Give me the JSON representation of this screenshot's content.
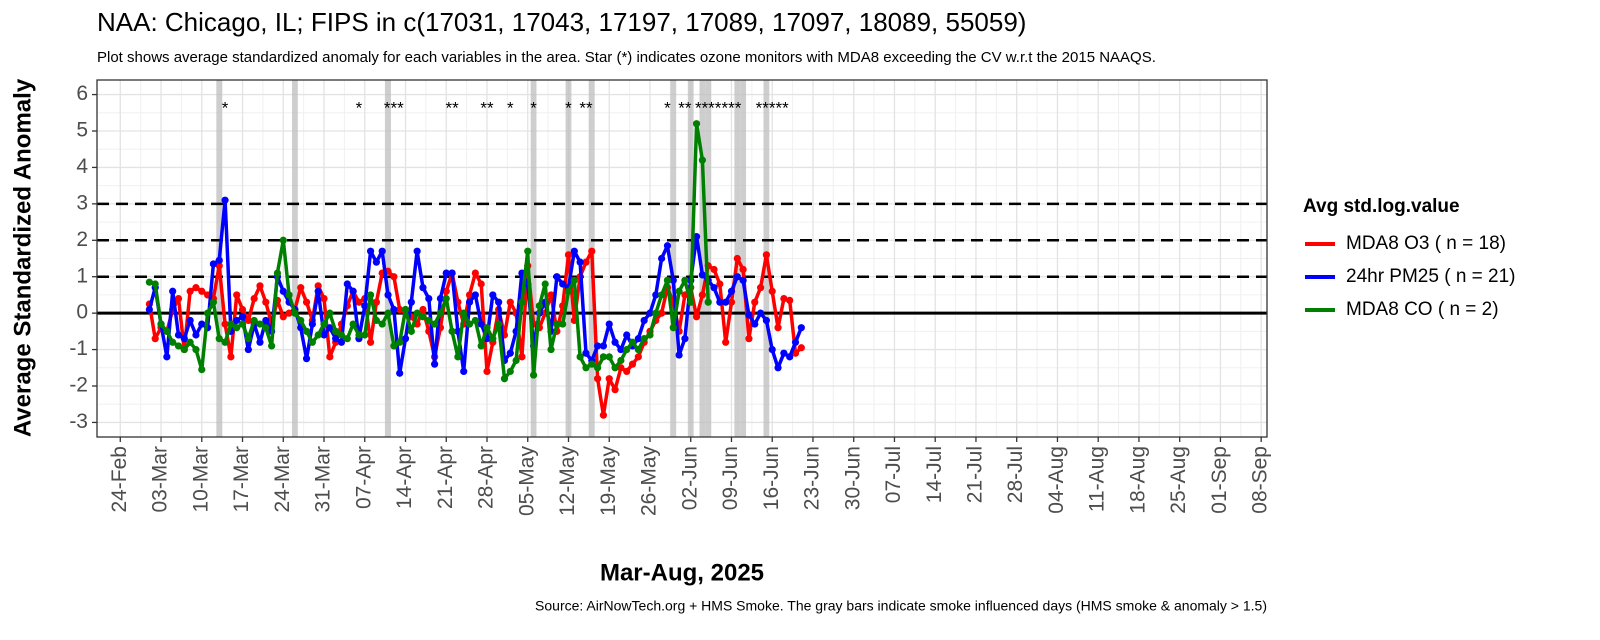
{
  "chart_data": {
    "type": "line",
    "title": "NAA: Chicago, IL; FIPS in c(17031, 17043, 17197, 17089, 17097, 18089, 55059)",
    "subtitle": "Plot shows average standardized anomaly for each variables in the area. Star (*) indicates ozone monitors with MDA8 exceeding the CV w.r.t the 2015 NAAQS.",
    "x_label": "Mar-Aug, 2025",
    "y_label": "Average Standardized Anomaly",
    "caption": "Source: AirNowTech.org + HMS Smoke. The gray bars indicate smoke influenced days (HMS smoke & anomaly > 1.5)",
    "legend_title": "Avg std.log.value",
    "legend": "right",
    "grid": true,
    "xlim": [
      "2025-02-20",
      "2025-09-09"
    ],
    "xticks": [
      {
        "value": "2025-02-24",
        "label": "24-Feb"
      },
      {
        "value": "2025-03-03",
        "label": "03-Mar"
      },
      {
        "value": "2025-03-10",
        "label": "10-Mar"
      },
      {
        "value": "2025-03-17",
        "label": "17-Mar"
      },
      {
        "value": "2025-03-24",
        "label": "24-Mar"
      },
      {
        "value": "2025-03-31",
        "label": "31-Mar"
      },
      {
        "value": "2025-04-07",
        "label": "07-Apr"
      },
      {
        "value": "2025-04-14",
        "label": "14-Apr"
      },
      {
        "value": "2025-04-21",
        "label": "21-Apr"
      },
      {
        "value": "2025-04-28",
        "label": "28-Apr"
      },
      {
        "value": "2025-05-05",
        "label": "05-May"
      },
      {
        "value": "2025-05-12",
        "label": "12-May"
      },
      {
        "value": "2025-05-19",
        "label": "19-May"
      },
      {
        "value": "2025-05-26",
        "label": "26-May"
      },
      {
        "value": "2025-06-02",
        "label": "02-Jun"
      },
      {
        "value": "2025-06-09",
        "label": "09-Jun"
      },
      {
        "value": "2025-06-16",
        "label": "16-Jun"
      },
      {
        "value": "2025-06-23",
        "label": "23-Jun"
      },
      {
        "value": "2025-06-30",
        "label": "30-Jun"
      },
      {
        "value": "2025-07-07",
        "label": "07-Jul"
      },
      {
        "value": "2025-07-14",
        "label": "14-Jul"
      },
      {
        "value": "2025-07-21",
        "label": "21-Jul"
      },
      {
        "value": "2025-07-28",
        "label": "28-Jul"
      },
      {
        "value": "2025-08-04",
        "label": "04-Aug"
      },
      {
        "value": "2025-08-11",
        "label": "11-Aug"
      },
      {
        "value": "2025-08-18",
        "label": "18-Aug"
      },
      {
        "value": "2025-08-25",
        "label": "25-Aug"
      },
      {
        "value": "2025-09-01",
        "label": "01-Sep"
      },
      {
        "value": "2025-09-08",
        "label": "08-Sep"
      }
    ],
    "ylim": [
      -3.4,
      6.4
    ],
    "yticks": [
      -3,
      -2,
      -1,
      0,
      1,
      2,
      3,
      4,
      5,
      6
    ],
    "hlines": [
      {
        "value": 0,
        "dashed": false
      },
      {
        "value": 1,
        "dashed": true
      },
      {
        "value": 2,
        "dashed": true
      },
      {
        "value": 3,
        "dashed": true
      }
    ],
    "smoke_days": [
      "2025-03-13",
      "2025-03-26",
      "2025-04-11",
      "2025-05-06",
      "2025-05-12",
      "2025-05-16",
      "2025-05-30",
      "2025-06-02",
      "2025-06-04",
      "2025-06-05",
      "2025-06-10",
      "2025-06-11",
      "2025-06-15"
    ],
    "smoke_color": "#bdbdbd",
    "annotations": [
      {
        "x": "2025-03-14",
        "y": 5.6,
        "text": "*"
      },
      {
        "x": "2025-04-06",
        "y": 5.6,
        "text": "*"
      },
      {
        "x": "2025-04-12",
        "y": 5.6,
        "text": "***"
      },
      {
        "x": "2025-04-22",
        "y": 5.6,
        "text": "**"
      },
      {
        "x": "2025-04-28",
        "y": 5.6,
        "text": "**"
      },
      {
        "x": "2025-05-02",
        "y": 5.6,
        "text": "*"
      },
      {
        "x": "2025-05-06",
        "y": 5.6,
        "text": "*"
      },
      {
        "x": "2025-05-12",
        "y": 5.6,
        "text": "*"
      },
      {
        "x": "2025-05-15",
        "y": 5.6,
        "text": "**"
      },
      {
        "x": "2025-05-29",
        "y": 5.6,
        "text": "*"
      },
      {
        "x": "2025-06-01",
        "y": 5.6,
        "text": "**"
      },
      {
        "x": "2025-06-05",
        "y": 5.6,
        "text": "****"
      },
      {
        "x": "2025-06-09",
        "y": 5.6,
        "text": "***"
      },
      {
        "x": "2025-06-16",
        "y": 5.6,
        "text": "*****"
      }
    ],
    "x": [
      "2025-03-01",
      "2025-03-02",
      "2025-03-03",
      "2025-03-04",
      "2025-03-05",
      "2025-03-06",
      "2025-03-07",
      "2025-03-08",
      "2025-03-09",
      "2025-03-10",
      "2025-03-11",
      "2025-03-12",
      "2025-03-13",
      "2025-03-14",
      "2025-03-15",
      "2025-03-16",
      "2025-03-17",
      "2025-03-18",
      "2025-03-19",
      "2025-03-20",
      "2025-03-21",
      "2025-03-22",
      "2025-03-23",
      "2025-03-24",
      "2025-03-25",
      "2025-03-26",
      "2025-03-27",
      "2025-03-28",
      "2025-03-29",
      "2025-03-30",
      "2025-03-31",
      "2025-04-01",
      "2025-04-02",
      "2025-04-03",
      "2025-04-04",
      "2025-04-05",
      "2025-04-06",
      "2025-04-07",
      "2025-04-08",
      "2025-04-09",
      "2025-04-10",
      "2025-04-11",
      "2025-04-12",
      "2025-04-13",
      "2025-04-14",
      "2025-04-15",
      "2025-04-16",
      "2025-04-17",
      "2025-04-18",
      "2025-04-19",
      "2025-04-20",
      "2025-04-21",
      "2025-04-22",
      "2025-04-23",
      "2025-04-24",
      "2025-04-25",
      "2025-04-26",
      "2025-04-27",
      "2025-04-28",
      "2025-04-29",
      "2025-04-30",
      "2025-05-01",
      "2025-05-02",
      "2025-05-03",
      "2025-05-04",
      "2025-05-05",
      "2025-05-06",
      "2025-05-07",
      "2025-05-08",
      "2025-05-09",
      "2025-05-10",
      "2025-05-11",
      "2025-05-12",
      "2025-05-13",
      "2025-05-14",
      "2025-05-15",
      "2025-05-16",
      "2025-05-17",
      "2025-05-18",
      "2025-05-19",
      "2025-05-20",
      "2025-05-21",
      "2025-05-22",
      "2025-05-23",
      "2025-05-24",
      "2025-05-25",
      "2025-05-26",
      "2025-05-27",
      "2025-05-28",
      "2025-05-29",
      "2025-05-30",
      "2025-05-31",
      "2025-06-01",
      "2025-06-02",
      "2025-06-03",
      "2025-06-04",
      "2025-06-05",
      "2025-06-06",
      "2025-06-07",
      "2025-06-08",
      "2025-06-09",
      "2025-06-10",
      "2025-06-11",
      "2025-06-12",
      "2025-06-13",
      "2025-06-14",
      "2025-06-15",
      "2025-06-16",
      "2025-06-17",
      "2025-06-18",
      "2025-06-19",
      "2025-06-20",
      "2025-06-21"
    ],
    "series": [
      {
        "name": "MDA8 O3 ( n = 18)",
        "color": "#ff0000",
        "values": [
          0.25,
          -0.7,
          -0.4,
          -0.5,
          0.1,
          0.4,
          -1.0,
          0.6,
          0.7,
          0.6,
          0.5,
          0.4,
          1.3,
          -0.3,
          -1.2,
          0.5,
          0.1,
          -0.2,
          0.4,
          0.75,
          0.3,
          -0.3,
          0.35,
          -0.1,
          0.0,
          0.1,
          0.7,
          0.3,
          -0.2,
          0.75,
          0.4,
          -1.2,
          -0.8,
          -0.3,
          0.2,
          0.6,
          0.3,
          0.4,
          -0.8,
          0.3,
          1.1,
          1.15,
          1.0,
          0.1,
          0.05,
          -0.1,
          -0.3,
          0.1,
          -0.5,
          -1.2,
          -0.4,
          0.6,
          1.1,
          0.3,
          -0.3,
          0.5,
          1.1,
          0.8,
          -1.6,
          -0.8,
          0.1,
          -0.6,
          0.3,
          0.0,
          -1.2,
          1.3,
          -0.3,
          -0.4,
          0.0,
          0.5,
          -0.5,
          0.2,
          1.6,
          -0.2,
          1.0,
          1.4,
          1.7,
          -1.8,
          -2.8,
          -1.8,
          -2.1,
          -1.5,
          -1.6,
          -1.4,
          -1.2,
          -0.8,
          -0.5,
          -0.2,
          0.0,
          0.7,
          0.3,
          -0.5,
          0.5,
          0.7,
          -0.1,
          0.5,
          1.3,
          1.2,
          0.8,
          -0.8,
          0.3,
          1.5,
          1.2,
          -0.7,
          0.3,
          0.7,
          1.6,
          0.6,
          -0.4,
          0.4,
          0.35,
          -1.1,
          -0.95
        ]
      },
      {
        "name": "24hr PM25 ( n = 21)",
        "color": "#0000ff",
        "values": [
          0.1,
          0.7,
          -0.3,
          -1.2,
          0.6,
          -0.6,
          -0.7,
          -0.2,
          -0.6,
          -0.3,
          -0.4,
          1.35,
          1.45,
          3.1,
          -0.5,
          -0.2,
          -0.1,
          -1.0,
          -0.3,
          -0.8,
          -0.2,
          -0.5,
          1.0,
          0.6,
          0.3,
          0.1,
          -0.4,
          -1.25,
          -0.3,
          0.6,
          -0.6,
          -0.4,
          -0.7,
          -0.8,
          0.8,
          0.6,
          -0.7,
          0.2,
          1.7,
          1.4,
          1.7,
          0.5,
          0.1,
          -1.65,
          -0.7,
          0.3,
          1.7,
          0.7,
          0.4,
          -1.4,
          0.4,
          1.1,
          1.1,
          -0.5,
          -1.6,
          0.3,
          0.5,
          -0.3,
          -0.7,
          0.5,
          0.3,
          -1.3,
          -1.1,
          -0.5,
          1.1,
          0.8,
          -0.9,
          0.0,
          0.3,
          -0.5,
          1.0,
          0.8,
          0.7,
          1.7,
          1.4,
          -1.1,
          -1.3,
          -0.9,
          -0.9,
          -0.3,
          -0.8,
          -1.0,
          -0.6,
          -0.9,
          -0.7,
          -0.2,
          0.0,
          0.5,
          1.5,
          1.85,
          0.9,
          -1.15,
          -0.7,
          0.9,
          2.1,
          1.05,
          0.9,
          0.7,
          0.3,
          0.3,
          0.6,
          1.0,
          0.9,
          -0.05,
          -0.3,
          0.0,
          -0.2,
          -1.0,
          -1.5,
          -1.1,
          -1.2,
          -0.8,
          -0.4
        ]
      },
      {
        "name": "MDA8 CO ( n = 2)",
        "color": "#008000",
        "values": [
          0.85,
          0.8,
          -0.3,
          -0.5,
          -0.8,
          -0.9,
          -1.0,
          -0.8,
          -1.0,
          -1.55,
          0.0,
          0.3,
          -0.7,
          -0.8,
          -0.3,
          -0.4,
          -0.3,
          -0.7,
          -0.2,
          -0.3,
          -0.4,
          -0.9,
          1.1,
          2.0,
          0.5,
          0.0,
          -0.2,
          -0.5,
          -0.8,
          -0.6,
          -0.3,
          0.0,
          -0.5,
          -0.6,
          -0.7,
          -0.3,
          -0.6,
          -0.6,
          0.5,
          -0.2,
          -0.3,
          0.0,
          -0.9,
          -0.8,
          0.1,
          -0.5,
          0.0,
          -0.1,
          -0.2,
          -0.3,
          0.0,
          0.4,
          -0.5,
          -1.2,
          0.0,
          -0.3,
          -0.2,
          -0.9,
          -0.4,
          -0.7,
          -0.3,
          -1.8,
          -1.6,
          -1.3,
          0.3,
          1.7,
          -1.7,
          0.2,
          0.8,
          -1.0,
          -0.3,
          -0.3,
          0.6,
          0.9,
          -1.2,
          -1.5,
          -1.4,
          -1.5,
          -1.2,
          -1.2,
          -1.5,
          -1.3,
          -1.0,
          -0.8,
          -1.0,
          -0.7,
          -0.6,
          0.0,
          0.5,
          0.9,
          -0.4,
          0.6,
          0.9,
          0.3,
          5.2,
          4.2,
          0.3,
          null,
          null,
          null,
          null,
          null,
          null,
          null,
          null,
          null,
          null,
          null,
          null,
          null,
          null,
          null,
          null
        ]
      }
    ]
  }
}
